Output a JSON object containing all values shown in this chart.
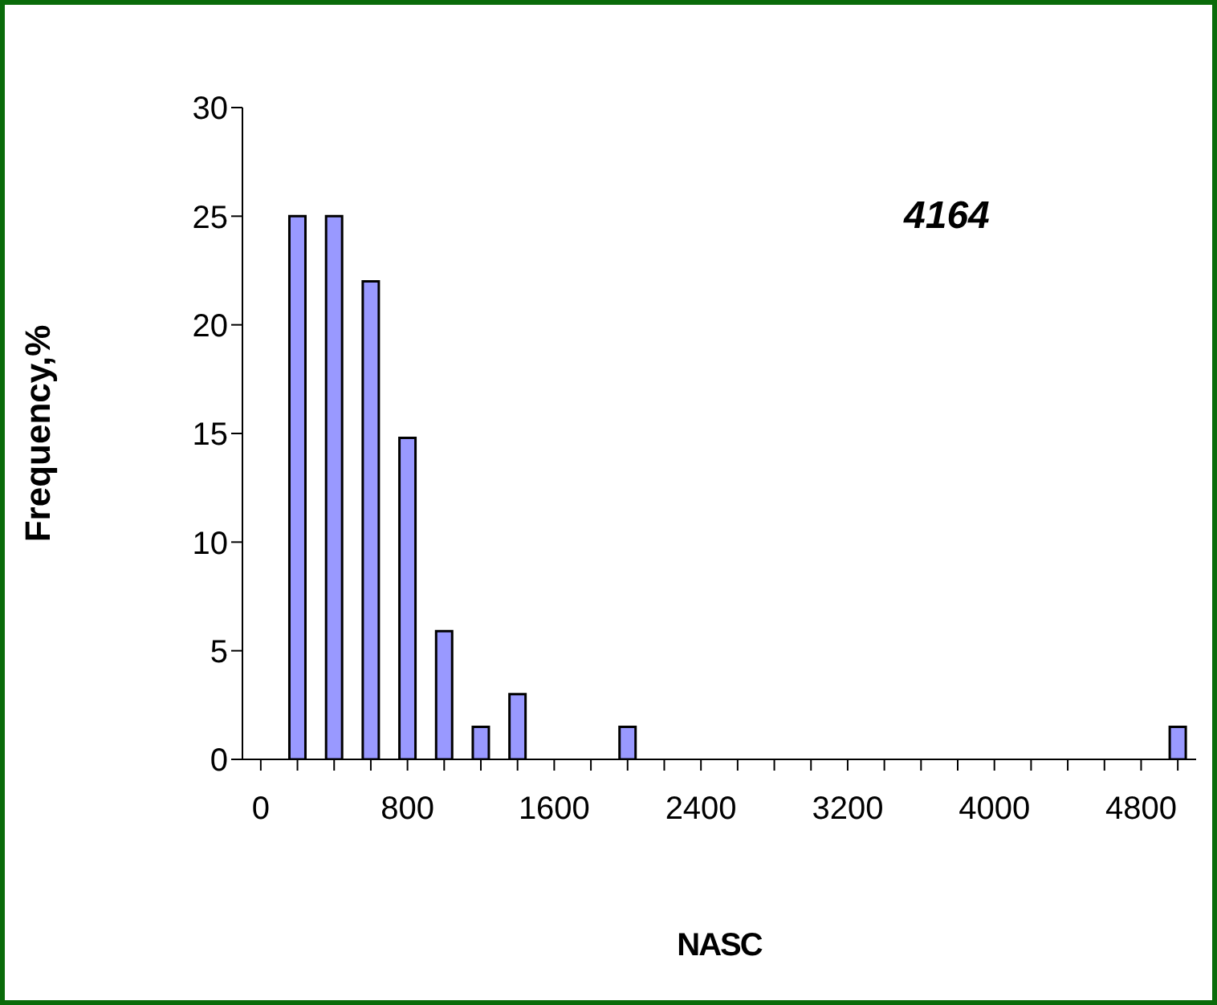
{
  "chart_data": {
    "type": "bar",
    "xlabel": "NASC",
    "ylabel": "Frequency,%",
    "annotations": [
      "4164"
    ],
    "categories": [
      "0",
      null,
      null,
      null,
      "800",
      null,
      null,
      null,
      "1600",
      null,
      null,
      null,
      "2400",
      null,
      null,
      null,
      "3200",
      null,
      null,
      null,
      "4000",
      null,
      null,
      null,
      "4800",
      null
    ],
    "values": [
      0,
      25,
      25,
      22,
      14.8,
      5.9,
      1.5,
      3,
      0,
      0,
      1.5,
      0,
      0,
      0,
      0,
      0,
      0,
      0,
      0,
      0,
      0,
      0,
      0,
      0,
      0,
      1.5
    ],
    "color": "#9999ff",
    "ylim": [
      0,
      30
    ],
    "yticks": [
      0,
      5,
      10,
      15,
      20,
      25,
      30
    ],
    "grid": false,
    "legend": false
  }
}
